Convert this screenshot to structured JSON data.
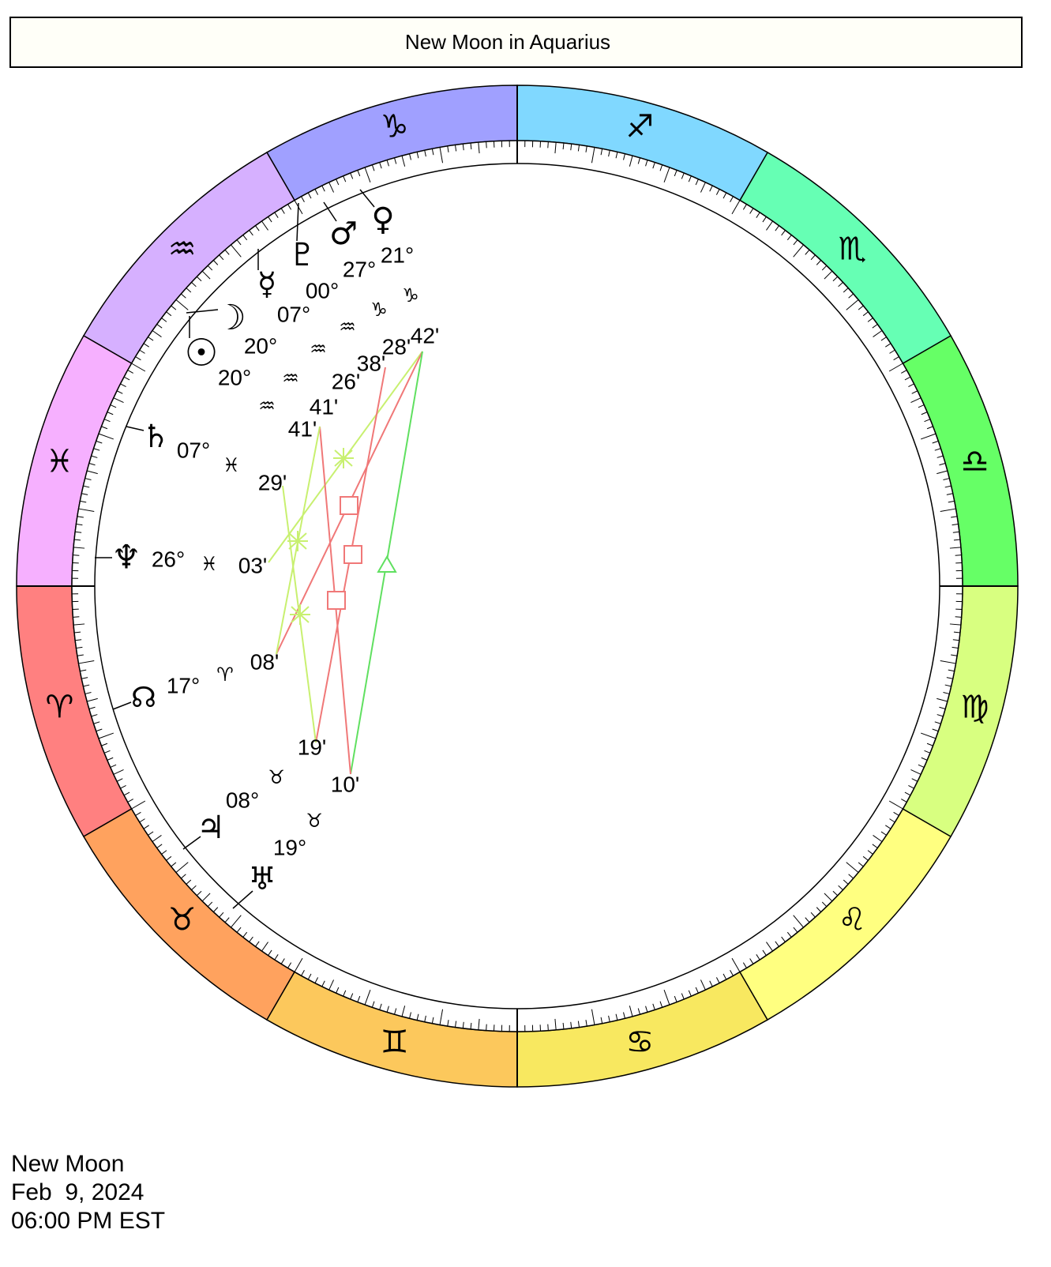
{
  "title": "New Moon in Aquarius",
  "signs": [
    "♈",
    "♉",
    "♊",
    "♋",
    "♌",
    "♍",
    "♎",
    "♏",
    "♐",
    "♑",
    "♒",
    "♓"
  ],
  "planets": [
    {
      "glyph": "☉",
      "degree": "20°",
      "sign": "♒",
      "minute": "41'"
    },
    {
      "glyph": "☽",
      "degree": "20°",
      "sign": "♒",
      "minute": "41'"
    },
    {
      "glyph": "☿",
      "degree": "07°",
      "sign": "♒",
      "minute": "26'"
    },
    {
      "glyph": "♇",
      "degree": "00°",
      "sign": "♒",
      "minute": "38'"
    },
    {
      "glyph": "♂",
      "degree": "27°",
      "sign": "♑",
      "minute": "28'"
    },
    {
      "glyph": "♀",
      "degree": "21°",
      "sign": "♑",
      "minute": "42'"
    },
    {
      "glyph": "♄",
      "degree": "07°",
      "sign": "♓",
      "minute": "29'"
    },
    {
      "glyph": "♆",
      "degree": "26°",
      "sign": "♓",
      "minute": "03'"
    },
    {
      "glyph": "☊",
      "degree": "17°",
      "sign": "♈",
      "minute": "08'"
    },
    {
      "glyph": "♃",
      "degree": "08°",
      "sign": "♉",
      "minute": "19'"
    },
    {
      "glyph": "♅",
      "degree": "19°",
      "sign": "♉",
      "minute": "10'"
    }
  ],
  "footer": [
    "New Moon",
    "Feb  9, 2024",
    "06:00 PM EST"
  ]
}
